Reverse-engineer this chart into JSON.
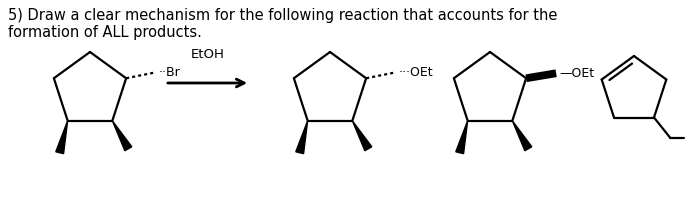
{
  "title_line1": "5) Draw a clear mechanism for the following reaction that accounts for the",
  "title_line2": "formation of ALL products.",
  "reagent": "EtOH",
  "label_br": "··Br",
  "label_oet1": "···OEt",
  "label_oet2": "—OEt",
  "bg_color": "#ffffff",
  "line_color": "#000000",
  "font_size_title": 10.5,
  "font_size_reagent": 9.5
}
